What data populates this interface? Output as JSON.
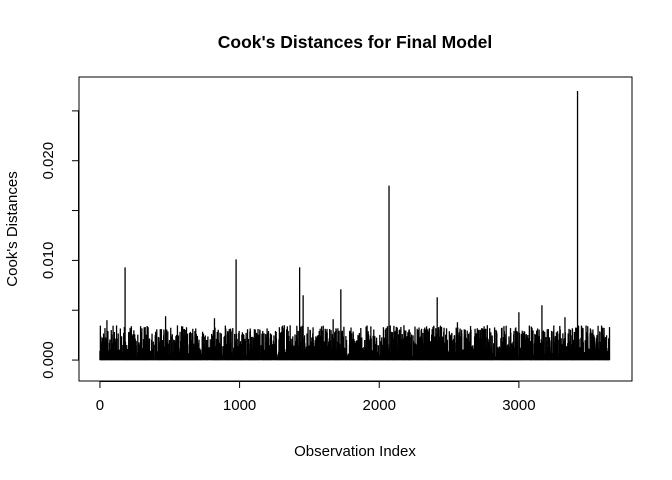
{
  "chart_data": {
    "type": "bar",
    "style": "histogram-spikes",
    "title": "Cook's Distances for Final Model",
    "xlabel": "Observation Index",
    "ylabel": "Cook's Distances",
    "xlim": [
      -150,
      3810
    ],
    "ylim": [
      -0.0021,
      0.0284
    ],
    "x_ticks": [
      0,
      1000,
      2000,
      3000
    ],
    "x_tick_labels": [
      "0",
      "1000",
      "2000",
      "3000"
    ],
    "y_ticks": [
      0.0,
      0.005,
      0.01,
      0.015,
      0.02,
      0.025
    ],
    "y_tick_labels": [
      "0.000",
      "",
      "0.010",
      "",
      "0.020",
      ""
    ],
    "n_observations": 3650,
    "notable_points": [
      {
        "x": 180,
        "y": 0.0093
      },
      {
        "x": 975,
        "y": 0.0101
      },
      {
        "x": 1430,
        "y": 0.0093
      },
      {
        "x": 1455,
        "y": 0.0065
      },
      {
        "x": 1725,
        "y": 0.0071
      },
      {
        "x": 2070,
        "y": 0.0175
      },
      {
        "x": 2415,
        "y": 0.0063
      },
      {
        "x": 3165,
        "y": 0.0055
      },
      {
        "x": 3420,
        "y": 0.027
      },
      {
        "x": 50,
        "y": 0.004
      },
      {
        "x": 470,
        "y": 0.0044
      },
      {
        "x": 820,
        "y": 0.0042
      },
      {
        "x": 1320,
        "y": 0.0035
      },
      {
        "x": 1670,
        "y": 0.0041
      },
      {
        "x": 2560,
        "y": 0.0038
      },
      {
        "x": 3000,
        "y": 0.0048
      },
      {
        "x": 3330,
        "y": 0.0043
      },
      {
        "x": 3650,
        "y": 0.0037
      }
    ],
    "baseline_max": 0.0035,
    "grid": false,
    "legend": false
  }
}
